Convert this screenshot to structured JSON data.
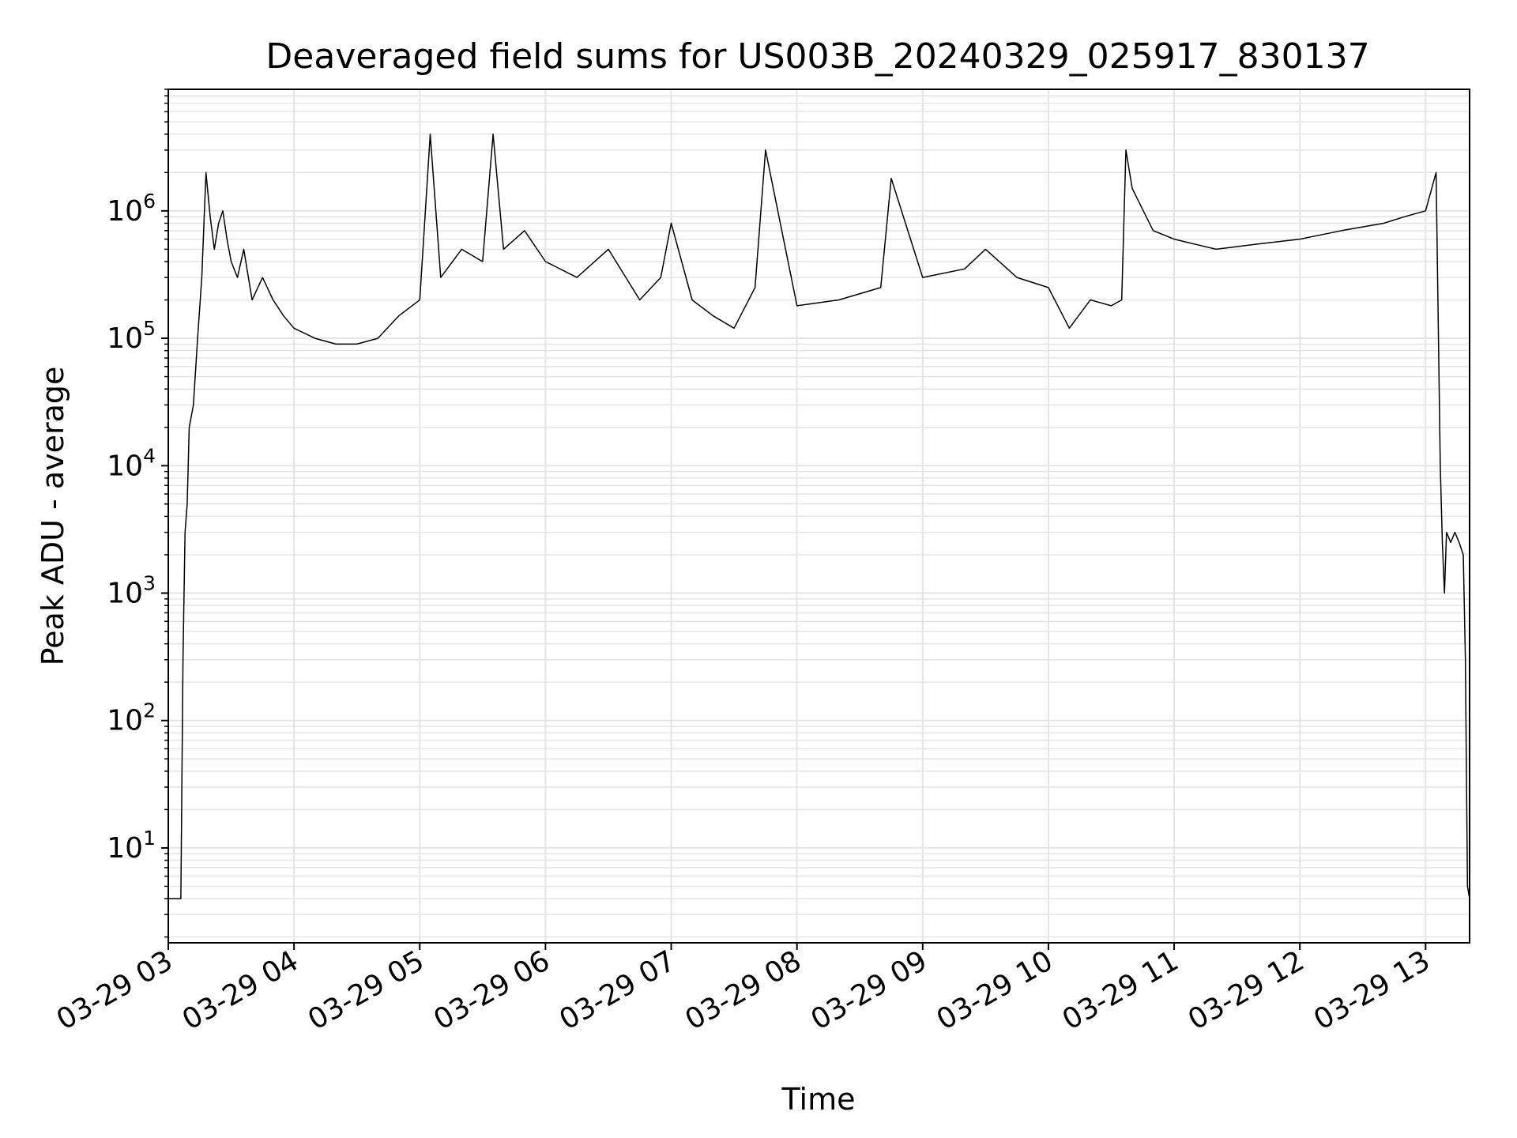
{
  "chart_data": {
    "type": "line",
    "title": "Deaveraged field sums for US003B_20240329_025917_830137",
    "xlabel": "Time",
    "ylabel": "Peak ADU - average",
    "yscale": "log",
    "ylim": [
      1.8,
      9000000
    ],
    "xlim": [
      "2024-03-29 03:00",
      "2024-03-29 13:21"
    ],
    "grid": true,
    "line_color": "#000000",
    "grid_color": "#e5e5e5",
    "x_ticks": [
      {
        "value": "2024-03-29 03:00",
        "label": "03-29 03"
      },
      {
        "value": "2024-03-29 04:00",
        "label": "03-29 04"
      },
      {
        "value": "2024-03-29 05:00",
        "label": "03-29 05"
      },
      {
        "value": "2024-03-29 06:00",
        "label": "03-29 06"
      },
      {
        "value": "2024-03-29 07:00",
        "label": "03-29 07"
      },
      {
        "value": "2024-03-29 08:00",
        "label": "03-29 08"
      },
      {
        "value": "2024-03-29 09:00",
        "label": "03-29 09"
      },
      {
        "value": "2024-03-29 10:00",
        "label": "03-29 10"
      },
      {
        "value": "2024-03-29 11:00",
        "label": "03-29 11"
      },
      {
        "value": "2024-03-29 12:00",
        "label": "03-29 12"
      },
      {
        "value": "2024-03-29 13:00",
        "label": "03-29 13"
      }
    ],
    "y_ticks": [
      {
        "value": 10,
        "base": "10",
        "exp": "1"
      },
      {
        "value": 100,
        "base": "10",
        "exp": "2"
      },
      {
        "value": 1000,
        "base": "10",
        "exp": "3"
      },
      {
        "value": 10000,
        "base": "10",
        "exp": "4"
      },
      {
        "value": 100000,
        "base": "10",
        "exp": "5"
      },
      {
        "value": 1000000,
        "base": "10",
        "exp": "6"
      }
    ],
    "series": [
      {
        "x": [
          "2024-03-29 03:00",
          "2024-03-29 03:02",
          "2024-03-29 03:03",
          "2024-03-29 03:04",
          "2024-03-29 03:05",
          "2024-03-29 03:06",
          "2024-03-29 03:07",
          "2024-03-29 03:08",
          "2024-03-29 03:09",
          "2024-03-29 03:10",
          "2024-03-29 03:12",
          "2024-03-29 03:14",
          "2024-03-29 03:16",
          "2024-03-29 03:18",
          "2024-03-29 03:20",
          "2024-03-29 03:22",
          "2024-03-29 03:24",
          "2024-03-29 03:26",
          "2024-03-29 03:28",
          "2024-03-29 03:30",
          "2024-03-29 03:33",
          "2024-03-29 03:36",
          "2024-03-29 03:40",
          "2024-03-29 03:45",
          "2024-03-29 03:50",
          "2024-03-29 03:55",
          "2024-03-29 04:00",
          "2024-03-29 04:10",
          "2024-03-29 04:20",
          "2024-03-29 04:30",
          "2024-03-29 04:40",
          "2024-03-29 04:50",
          "2024-03-29 05:00",
          "2024-03-29 05:05",
          "2024-03-29 05:10",
          "2024-03-29 05:20",
          "2024-03-29 05:30",
          "2024-03-29 05:35",
          "2024-03-29 05:40",
          "2024-03-29 05:50",
          "2024-03-29 06:00",
          "2024-03-29 06:15",
          "2024-03-29 06:30",
          "2024-03-29 06:45",
          "2024-03-29 06:55",
          "2024-03-29 07:00",
          "2024-03-29 07:10",
          "2024-03-29 07:20",
          "2024-03-29 07:30",
          "2024-03-29 07:40",
          "2024-03-29 07:45",
          "2024-03-29 08:00",
          "2024-03-29 08:20",
          "2024-03-29 08:40",
          "2024-03-29 08:45",
          "2024-03-29 09:00",
          "2024-03-29 09:20",
          "2024-03-29 09:30",
          "2024-03-29 09:45",
          "2024-03-29 10:00",
          "2024-03-29 10:10",
          "2024-03-29 10:20",
          "2024-03-29 10:30",
          "2024-03-29 10:35",
          "2024-03-29 10:37",
          "2024-03-29 10:40",
          "2024-03-29 10:50",
          "2024-03-29 11:00",
          "2024-03-29 11:20",
          "2024-03-29 11:40",
          "2024-03-29 12:00",
          "2024-03-29 12:20",
          "2024-03-29 12:40",
          "2024-03-29 12:50",
          "2024-03-29 13:00",
          "2024-03-29 13:05",
          "2024-03-29 13:07",
          "2024-03-29 13:08",
          "2024-03-29 13:09",
          "2024-03-29 13:10",
          "2024-03-29 13:12",
          "2024-03-29 13:14",
          "2024-03-29 13:16",
          "2024-03-29 13:18",
          "2024-03-29 13:19",
          "2024-03-29 13:20",
          "2024-03-29 13:21"
        ],
        "y": [
          4,
          4,
          4,
          4,
          4,
          4,
          300,
          3000,
          5000,
          20000,
          30000,
          100000,
          300000,
          2000000,
          900000,
          500000,
          800000,
          1000000,
          600000,
          400000,
          300000,
          500000,
          200000,
          300000,
          200000,
          150000,
          120000,
          100000,
          90000,
          90000,
          100000,
          150000,
          200000,
          4000000,
          300000,
          500000,
          400000,
          4000000,
          500000,
          700000,
          400000,
          300000,
          500000,
          200000,
          300000,
          800000,
          200000,
          150000,
          120000,
          250000,
          3000000,
          180000,
          200000,
          250000,
          1800000,
          300000,
          350000,
          500000,
          300000,
          250000,
          120000,
          200000,
          180000,
          200000,
          3000000,
          1500000,
          700000,
          600000,
          500000,
          550000,
          600000,
          700000,
          800000,
          900000,
          1000000,
          2000000,
          10000,
          2500,
          1000,
          3000,
          2500,
          3000,
          2500,
          2000,
          300,
          5,
          4
        ]
      }
    ]
  }
}
